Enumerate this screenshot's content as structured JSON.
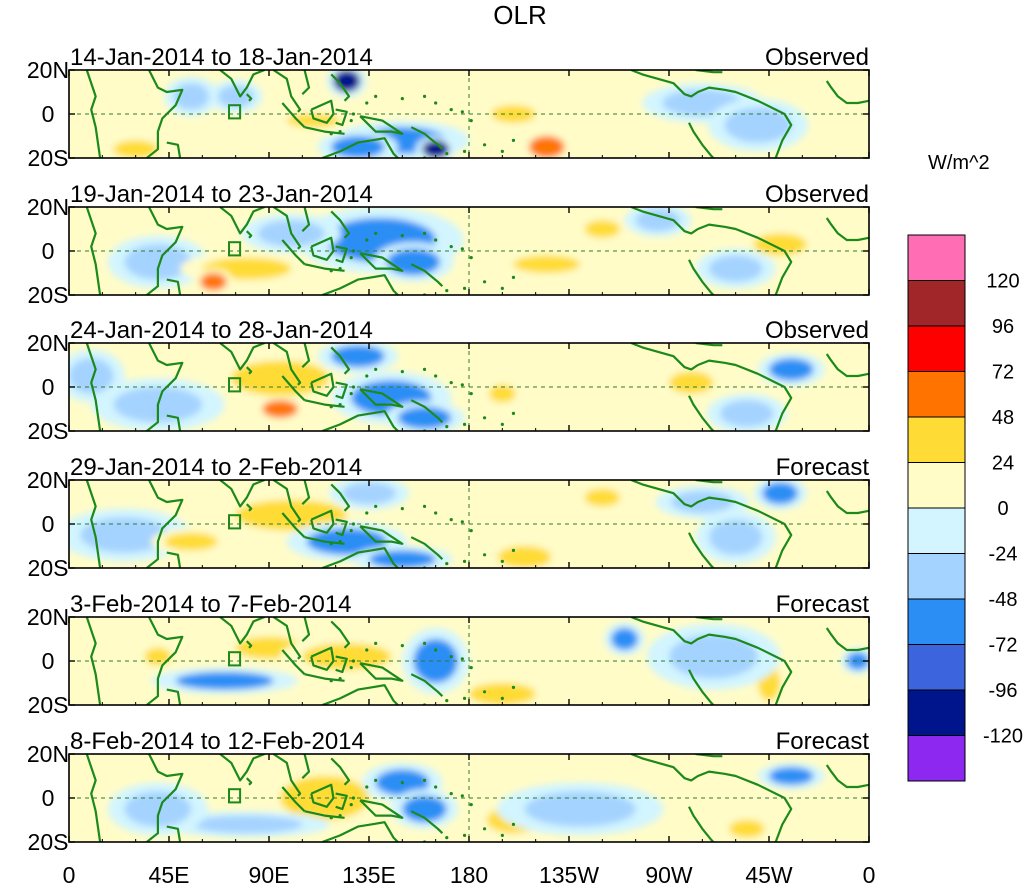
{
  "chart_data": {
    "type": "heatmap",
    "title": "OLR",
    "units_label": "W/m^2",
    "colorbar": {
      "ticks": [
        "120",
        "96",
        "72",
        "48",
        "24",
        "0",
        "-24",
        "-48",
        "-72",
        "-96",
        "-120"
      ],
      "colors": [
        "#ff6eb4",
        "#a0262a",
        "#ff0000",
        "#ff7400",
        "#ffdc35",
        "#fffcc8",
        "#d2f5ff",
        "#a5d3ff",
        "#2a8ef5",
        "#3c64dc",
        "#00148c",
        "#8c28f0"
      ]
    },
    "land_color": "#1b8a1b",
    "y_ticks": [
      "20N",
      "0",
      "20S"
    ],
    "x_ticks": [
      "0",
      "45E",
      "90E",
      "135E",
      "180",
      "135W",
      "90W",
      "45W",
      "0"
    ],
    "lon_range": [
      0,
      360
    ],
    "lat_range": [
      -20,
      20
    ],
    "panels": [
      {
        "period": "14-Jan-2014 to 18-Jan-2014",
        "label": "Observed",
        "anomalies": [
          {
            "lon": 125,
            "lat": 15,
            "value": -110,
            "rx": 6,
            "ry": 5
          },
          {
            "lon": 55,
            "lat": 8,
            "value": -40,
            "rx": 8,
            "ry": 6
          },
          {
            "lon": 75,
            "lat": 8,
            "value": -35,
            "rx": 8,
            "ry": 5
          },
          {
            "lon": 150,
            "lat": -12,
            "value": -70,
            "rx": 20,
            "ry": 6
          },
          {
            "lon": 165,
            "lat": -16,
            "value": -100,
            "rx": 6,
            "ry": 4
          },
          {
            "lon": 130,
            "lat": -15,
            "value": -60,
            "rx": 12,
            "ry": 5
          },
          {
            "lon": 30,
            "lat": -16,
            "value": 40,
            "rx": 10,
            "ry": 4
          },
          {
            "lon": 215,
            "lat": -15,
            "value": 55,
            "rx": 8,
            "ry": 5
          },
          {
            "lon": 200,
            "lat": 0,
            "value": 30,
            "rx": 10,
            "ry": 4
          },
          {
            "lon": 110,
            "lat": -3,
            "value": 25,
            "rx": 12,
            "ry": 3
          },
          {
            "lon": 285,
            "lat": 5,
            "value": -30,
            "rx": 18,
            "ry": 6
          },
          {
            "lon": 310,
            "lat": -5,
            "value": -35,
            "rx": 15,
            "ry": 8
          }
        ]
      },
      {
        "period": "19-Jan-2014 to 23-Jan-2014",
        "label": "Observed",
        "anomalies": [
          {
            "lon": 140,
            "lat": 5,
            "value": -60,
            "rx": 25,
            "ry": 10
          },
          {
            "lon": 155,
            "lat": -5,
            "value": -70,
            "rx": 12,
            "ry": 6
          },
          {
            "lon": 100,
            "lat": 8,
            "value": -35,
            "rx": 15,
            "ry": 6
          },
          {
            "lon": 40,
            "lat": -5,
            "value": -30,
            "rx": 15,
            "ry": 8
          },
          {
            "lon": 80,
            "lat": -8,
            "value": 35,
            "rx": 20,
            "ry": 5
          },
          {
            "lon": 65,
            "lat": -14,
            "value": 50,
            "rx": 6,
            "ry": 4
          },
          {
            "lon": 215,
            "lat": -6,
            "value": 25,
            "rx": 15,
            "ry": 4
          },
          {
            "lon": 240,
            "lat": 10,
            "value": 30,
            "rx": 8,
            "ry": 4
          },
          {
            "lon": 320,
            "lat": 3,
            "value": 35,
            "rx": 12,
            "ry": 5
          },
          {
            "lon": 300,
            "lat": -8,
            "value": -30,
            "rx": 12,
            "ry": 6
          },
          {
            "lon": 265,
            "lat": 14,
            "value": -40,
            "rx": 10,
            "ry": 5
          }
        ]
      },
      {
        "period": "24-Jan-2014 to 28-Jan-2014",
        "label": "Observed",
        "anomalies": [
          {
            "lon": 95,
            "lat": 4,
            "value": 35,
            "rx": 22,
            "ry": 8
          },
          {
            "lon": 95,
            "lat": -10,
            "value": 60,
            "rx": 8,
            "ry": 4
          },
          {
            "lon": 130,
            "lat": 14,
            "value": -60,
            "rx": 12,
            "ry": 5
          },
          {
            "lon": 145,
            "lat": -5,
            "value": -60,
            "rx": 18,
            "ry": 8
          },
          {
            "lon": 160,
            "lat": -14,
            "value": -50,
            "rx": 12,
            "ry": 5
          },
          {
            "lon": 40,
            "lat": -8,
            "value": -35,
            "rx": 20,
            "ry": 8
          },
          {
            "lon": 10,
            "lat": 5,
            "value": -30,
            "rx": 10,
            "ry": 8
          },
          {
            "lon": 195,
            "lat": -3,
            "value": 30,
            "rx": 6,
            "ry": 4
          },
          {
            "lon": 325,
            "lat": 8,
            "value": -55,
            "rx": 10,
            "ry": 5
          },
          {
            "lon": 305,
            "lat": -12,
            "value": -35,
            "rx": 12,
            "ry": 6
          },
          {
            "lon": 280,
            "lat": 2,
            "value": 25,
            "rx": 10,
            "ry": 5
          }
        ]
      },
      {
        "period": "29-Jan-2014 to 2-Feb-2014",
        "label": "Forecast",
        "anomalies": [
          {
            "lon": 100,
            "lat": 4,
            "value": 35,
            "rx": 25,
            "ry": 7
          },
          {
            "lon": 125,
            "lat": -8,
            "value": -50,
            "rx": 18,
            "ry": 6
          },
          {
            "lon": 150,
            "lat": -16,
            "value": -65,
            "rx": 15,
            "ry": 4
          },
          {
            "lon": 135,
            "lat": 14,
            "value": -35,
            "rx": 12,
            "ry": 5
          },
          {
            "lon": 25,
            "lat": -5,
            "value": -30,
            "rx": 20,
            "ry": 8
          },
          {
            "lon": 55,
            "lat": -8,
            "value": 30,
            "rx": 12,
            "ry": 4
          },
          {
            "lon": 205,
            "lat": -15,
            "value": 45,
            "rx": 12,
            "ry": 5
          },
          {
            "lon": 240,
            "lat": 12,
            "value": 30,
            "rx": 8,
            "ry": 4
          },
          {
            "lon": 320,
            "lat": 14,
            "value": -60,
            "rx": 8,
            "ry": 5
          },
          {
            "lon": 285,
            "lat": 10,
            "value": -30,
            "rx": 14,
            "ry": 5
          },
          {
            "lon": 300,
            "lat": -6,
            "value": -30,
            "rx": 12,
            "ry": 8
          }
        ]
      },
      {
        "period": "3-Feb-2014 to 7-Feb-2014",
        "label": "Forecast",
        "anomalies": [
          {
            "lon": 70,
            "lat": -9,
            "value": -60,
            "rx": 22,
            "ry": 4
          },
          {
            "lon": 90,
            "lat": 6,
            "value": 35,
            "rx": 15,
            "ry": 5
          },
          {
            "lon": 125,
            "lat": 2,
            "value": 35,
            "rx": 20,
            "ry": 6
          },
          {
            "lon": 165,
            "lat": 0,
            "value": -60,
            "rx": 10,
            "ry": 10
          },
          {
            "lon": 195,
            "lat": -15,
            "value": 40,
            "rx": 15,
            "ry": 5
          },
          {
            "lon": 250,
            "lat": 10,
            "value": -70,
            "rx": 6,
            "ry": 5
          },
          {
            "lon": 315,
            "lat": -10,
            "value": 30,
            "rx": 5,
            "ry": 8
          },
          {
            "lon": 40,
            "lat": 2,
            "value": 30,
            "rx": 6,
            "ry": 4
          },
          {
            "lon": 355,
            "lat": 0,
            "value": -50,
            "rx": 5,
            "ry": 4
          },
          {
            "lon": 290,
            "lat": 2,
            "value": -30,
            "rx": 20,
            "ry": 10
          }
        ]
      },
      {
        "period": "8-Feb-2014 to 12-Feb-2014",
        "label": "Forecast",
        "anomalies": [
          {
            "lon": 115,
            "lat": 0,
            "value": 45,
            "rx": 20,
            "ry": 10
          },
          {
            "lon": 150,
            "lat": 7,
            "value": -55,
            "rx": 12,
            "ry": 6
          },
          {
            "lon": 160,
            "lat": -5,
            "value": -50,
            "rx": 10,
            "ry": 6
          },
          {
            "lon": 200,
            "lat": -10,
            "value": 35,
            "rx": 12,
            "ry": 6
          },
          {
            "lon": 80,
            "lat": -12,
            "value": -35,
            "rx": 25,
            "ry": 4
          },
          {
            "lon": 325,
            "lat": 10,
            "value": -60,
            "rx": 10,
            "ry": 4
          },
          {
            "lon": 305,
            "lat": -14,
            "value": 30,
            "rx": 8,
            "ry": 4
          },
          {
            "lon": 230,
            "lat": -5,
            "value": -25,
            "rx": 25,
            "ry": 8
          },
          {
            "lon": 40,
            "lat": -5,
            "value": -30,
            "rx": 15,
            "ry": 8
          }
        ]
      }
    ]
  }
}
